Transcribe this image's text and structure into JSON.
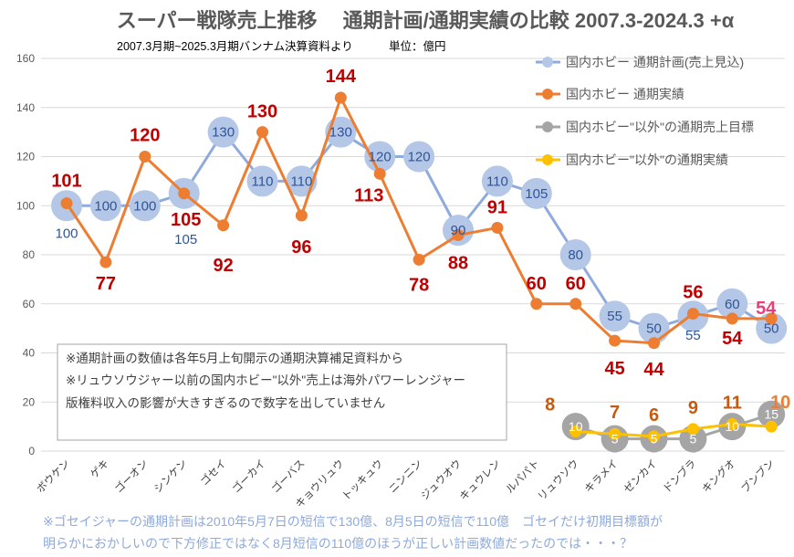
{
  "header": {
    "title": "スーパー戦隊売上推移　 通期計画/通期実績の比較 2007.3-2024.3 +α",
    "subtitle": "2007.3月期~2025.3月期バンナム決算資料より",
    "unit": "単位：億円"
  },
  "note_box": {
    "lines": [
      "※通期計画の数値は各年5月上旬開示の通期決算補足資料から",
      "※リュウソウジャー以前の国内ホビー\"以外\"売上は海外パワーレンジャー",
      "版権料収入の影響が大きすぎるので数字を出していません"
    ]
  },
  "footnote": {
    "lines": [
      "※ゴセイジャーの通期計画は2010年5月7日の短信で130億、8月5日の短信で110億　ゴセイだけ初期目標額が",
      "明らかにおかしいので下方修正ではなく8月短信の110億のほうが正しい計画数値だったのでは・・・？"
    ]
  },
  "chart_data": {
    "type": "line",
    "title": "スーパー戦隊売上推移 通期計画/通期実績の比較 2007.3-2024.3 +α",
    "xlabel": "",
    "ylabel": "",
    "ylim": [
      0,
      160
    ],
    "yticks": [
      0,
      20,
      40,
      60,
      80,
      100,
      120,
      140,
      160
    ],
    "grid": true,
    "legend_position": "top-right",
    "categories": [
      "ボウケン",
      "ゲキ",
      "ゴーオン",
      "シンケン",
      "ゴセイ",
      "ゴーカイ",
      "ゴーバス",
      "キョウリュウ",
      "トッキュウ",
      "ニンニン",
      "ジュウオウ",
      "キュウレン",
      "ルパパト",
      "リュウソウ",
      "キラメイ",
      "ゼンカイ",
      "ドンブラ",
      "キングオ",
      "ブンブン"
    ],
    "series": [
      {
        "name": "国内ホビー 通期計画(売上見込)",
        "color": "#8faadc",
        "marker_color": "#b4c7e7",
        "label_color": "#2f5597",
        "values": [
          100,
          100,
          100,
          105,
          130,
          110,
          110,
          130,
          120,
          120,
          90,
          110,
          105,
          80,
          55,
          50,
          55,
          60,
          50
        ]
      },
      {
        "name": "国内ホビー 通期実績",
        "color": "#ed7d31",
        "marker_color": "#ed7d31",
        "label_color": "#c00000",
        "last_label_color": "#e8407a",
        "values": [
          101,
          77,
          120,
          105,
          92,
          130,
          96,
          144,
          113,
          78,
          88,
          91,
          60,
          60,
          45,
          44,
          56,
          54,
          54
        ]
      },
      {
        "name": "国内ホビー\"以外\"の通期売上目標",
        "color": "#a5a5a5",
        "marker_color": "#a5a5a5",
        "label_color": "#ffffff",
        "values": [
          null,
          null,
          null,
          null,
          null,
          null,
          null,
          null,
          null,
          null,
          null,
          null,
          null,
          10,
          5,
          5,
          5,
          10,
          15
        ]
      },
      {
        "name": "国内ホビー\"以外\"の通期実績",
        "color": "#ffc000",
        "marker_color": "#ffc000",
        "label_color": "#c55a11",
        "last_label_color": "#ed7d31",
        "values": [
          null,
          null,
          null,
          null,
          null,
          null,
          null,
          null,
          null,
          null,
          null,
          null,
          null,
          8,
          7,
          6,
          9,
          11,
          10
        ]
      }
    ]
  }
}
